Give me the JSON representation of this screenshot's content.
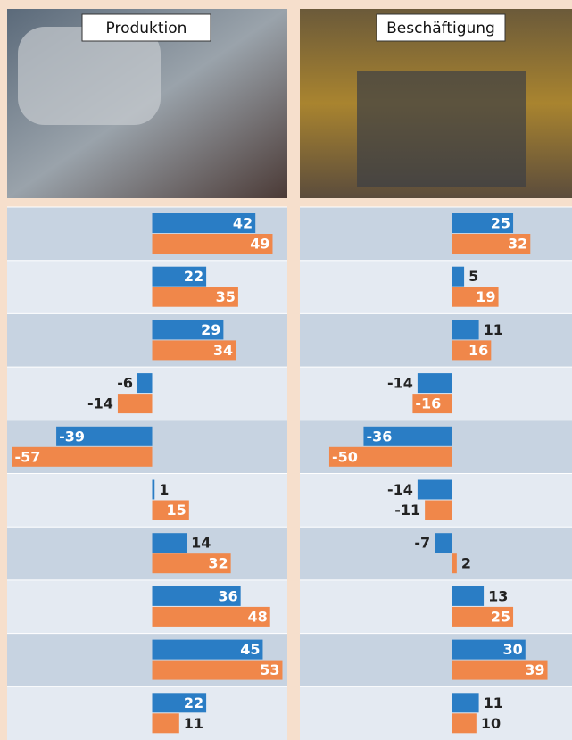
{
  "chart_data": [
    {
      "type": "bar",
      "title": "Produktion",
      "categories": [
        null,
        null,
        null,
        null,
        null,
        null,
        null,
        null,
        null,
        null
      ],
      "xlim": [
        -59,
        55
      ],
      "series": [
        {
          "color": "#2a7dc5",
          "values": [
            42,
            22,
            29,
            -6,
            -39,
            1,
            14,
            36,
            45,
            22
          ]
        },
        {
          "color": "#f0874a",
          "values": [
            49,
            35,
            34,
            -14,
            -57,
            15,
            32,
            48,
            53,
            11
          ]
        }
      ]
    },
    {
      "type": "bar",
      "title": "Beschäftigung",
      "categories": [
        null,
        null,
        null,
        null,
        null,
        null,
        null,
        null,
        null,
        null
      ],
      "xlim": [
        -62,
        49
      ],
      "series": [
        {
          "color": "#2a7dc5",
          "values": [
            25,
            5,
            11,
            -14,
            -36,
            -14,
            -7,
            13,
            30,
            11
          ]
        },
        {
          "color": "#f0874a",
          "values": [
            32,
            19,
            16,
            -16,
            -50,
            -11,
            2,
            25,
            39,
            10
          ]
        }
      ]
    }
  ]
}
